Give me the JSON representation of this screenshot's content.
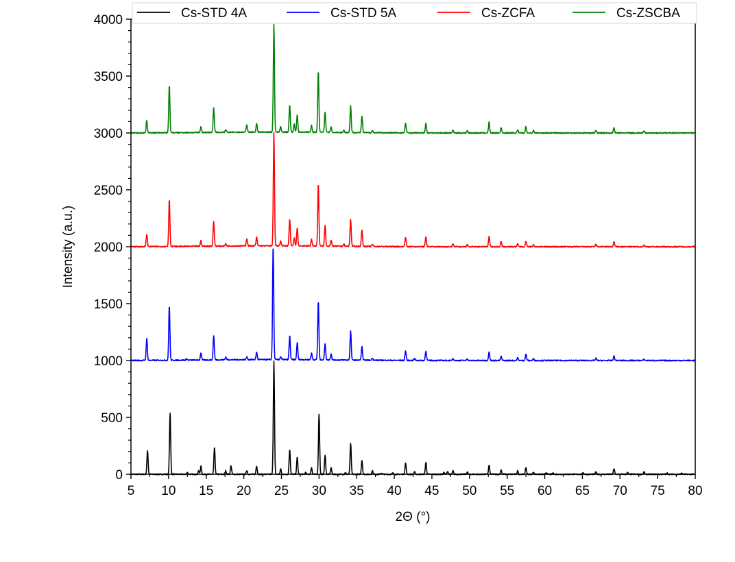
{
  "chart_data": {
    "type": "line",
    "xlabel": "2Θ (°)",
    "ylabel": "Intensity (a.u.)",
    "xlim": [
      5,
      80
    ],
    "ylim": [
      0,
      4000
    ],
    "x_ticks": [
      5,
      10,
      15,
      20,
      25,
      30,
      35,
      40,
      45,
      50,
      55,
      60,
      65,
      70,
      75,
      80
    ],
    "y_ticks": [
      0,
      500,
      1000,
      1500,
      2000,
      2500,
      3000,
      3500,
      4000
    ],
    "grid": false,
    "legend_position": "top",
    "series": [
      {
        "name": "Cs-STD 4A",
        "color": "#000000",
        "baseline": 0,
        "peaks": [
          [
            7.2,
            210
          ],
          [
            10.2,
            540
          ],
          [
            12.5,
            15
          ],
          [
            14.0,
            30
          ],
          [
            14.3,
            70
          ],
          [
            16.1,
            235
          ],
          [
            17.6,
            30
          ],
          [
            18.3,
            75
          ],
          [
            20.4,
            35
          ],
          [
            21.7,
            75
          ],
          [
            24.0,
            1000
          ],
          [
            24.9,
            45
          ],
          [
            26.1,
            220
          ],
          [
            27.1,
            150
          ],
          [
            28.2,
            15
          ],
          [
            29.0,
            60
          ],
          [
            30.0,
            530
          ],
          [
            30.8,
            165
          ],
          [
            31.6,
            60
          ],
          [
            33.5,
            15
          ],
          [
            34.2,
            270
          ],
          [
            35.7,
            125
          ],
          [
            37.1,
            30
          ],
          [
            38.3,
            10
          ],
          [
            39.8,
            10
          ],
          [
            41.5,
            100
          ],
          [
            42.7,
            20
          ],
          [
            44.2,
            105
          ],
          [
            46.6,
            15
          ],
          [
            47.1,
            25
          ],
          [
            47.8,
            30
          ],
          [
            49.7,
            20
          ],
          [
            52.6,
            80
          ],
          [
            54.2,
            40
          ],
          [
            56.4,
            30
          ],
          [
            57.5,
            60
          ],
          [
            58.5,
            20
          ],
          [
            60.2,
            15
          ],
          [
            61.1,
            10
          ],
          [
            65.1,
            15
          ],
          [
            66.8,
            20
          ],
          [
            69.2,
            50
          ],
          [
            71.0,
            15
          ],
          [
            73.2,
            20
          ],
          [
            76.3,
            10
          ],
          [
            78.2,
            10
          ]
        ]
      },
      {
        "name": "Cs-STD 5A",
        "color": "#0000ff",
        "baseline": 1000,
        "peaks": [
          [
            7.1,
            195
          ],
          [
            10.1,
            480
          ],
          [
            12.4,
            12
          ],
          [
            14.3,
            65
          ],
          [
            16.0,
            215
          ],
          [
            17.6,
            25
          ],
          [
            20.4,
            25
          ],
          [
            21.7,
            65
          ],
          [
            23.9,
            1000
          ],
          [
            24.9,
            25
          ],
          [
            26.1,
            210
          ],
          [
            27.1,
            150
          ],
          [
            29.0,
            60
          ],
          [
            29.9,
            515
          ],
          [
            30.8,
            145
          ],
          [
            31.6,
            55
          ],
          [
            34.2,
            255
          ],
          [
            35.7,
            120
          ],
          [
            37.1,
            20
          ],
          [
            41.5,
            85
          ],
          [
            42.7,
            15
          ],
          [
            44.2,
            85
          ],
          [
            47.8,
            20
          ],
          [
            49.7,
            15
          ],
          [
            52.6,
            80
          ],
          [
            54.2,
            35
          ],
          [
            56.4,
            25
          ],
          [
            57.5,
            55
          ],
          [
            58.5,
            15
          ],
          [
            66.8,
            20
          ],
          [
            69.2,
            40
          ],
          [
            73.2,
            10
          ]
        ]
      },
      {
        "name": "Cs-ZCFA",
        "color": "#ff0000",
        "baseline": 2000,
        "peaks": [
          [
            7.1,
            110
          ],
          [
            10.1,
            415
          ],
          [
            14.3,
            50
          ],
          [
            16.0,
            220
          ],
          [
            17.6,
            20
          ],
          [
            20.4,
            65
          ],
          [
            21.7,
            75
          ],
          [
            24.0,
            995
          ],
          [
            24.9,
            45
          ],
          [
            26.1,
            235
          ],
          [
            26.7,
            70
          ],
          [
            27.1,
            160
          ],
          [
            29.0,
            60
          ],
          [
            29.9,
            545
          ],
          [
            30.8,
            180
          ],
          [
            31.6,
            50
          ],
          [
            33.3,
            20
          ],
          [
            34.2,
            235
          ],
          [
            35.7,
            145
          ],
          [
            37.1,
            20
          ],
          [
            41.5,
            85
          ],
          [
            44.2,
            85
          ],
          [
            47.8,
            25
          ],
          [
            49.7,
            20
          ],
          [
            52.6,
            90
          ],
          [
            54.2,
            50
          ],
          [
            56.4,
            25
          ],
          [
            57.5,
            50
          ],
          [
            58.5,
            20
          ],
          [
            66.8,
            20
          ],
          [
            69.2,
            45
          ],
          [
            73.2,
            15
          ]
        ]
      },
      {
        "name": "Cs-ZSCBA",
        "color": "#008000",
        "baseline": 3000,
        "peaks": [
          [
            7.1,
            110
          ],
          [
            10.1,
            415
          ],
          [
            14.3,
            50
          ],
          [
            16.0,
            215
          ],
          [
            17.6,
            20
          ],
          [
            20.4,
            65
          ],
          [
            21.7,
            75
          ],
          [
            24.0,
            945
          ],
          [
            24.9,
            45
          ],
          [
            26.1,
            235
          ],
          [
            26.7,
            70
          ],
          [
            27.1,
            155
          ],
          [
            29.0,
            60
          ],
          [
            29.9,
            540
          ],
          [
            30.8,
            180
          ],
          [
            31.6,
            50
          ],
          [
            33.3,
            20
          ],
          [
            34.2,
            235
          ],
          [
            35.7,
            145
          ],
          [
            37.1,
            20
          ],
          [
            41.5,
            85
          ],
          [
            44.2,
            85
          ],
          [
            47.8,
            25
          ],
          [
            49.7,
            20
          ],
          [
            52.6,
            95
          ],
          [
            54.2,
            50
          ],
          [
            56.4,
            25
          ],
          [
            57.5,
            55
          ],
          [
            58.5,
            20
          ],
          [
            66.8,
            20
          ],
          [
            69.2,
            45
          ],
          [
            73.2,
            15
          ]
        ]
      }
    ]
  }
}
